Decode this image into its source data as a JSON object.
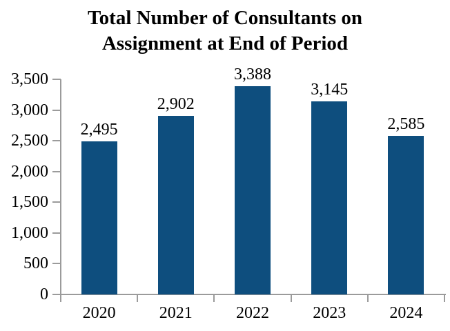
{
  "chart_data": {
    "type": "bar",
    "title": "Total Number of Consultants on Assignment at End of Period",
    "title_lines": [
      "Total Number of Consultants on",
      "Assignment at End of Period"
    ],
    "categories": [
      "2020",
      "2021",
      "2022",
      "2023",
      "2024"
    ],
    "values": [
      2495,
      2902,
      3388,
      3145,
      2585
    ],
    "value_labels": [
      "2,495",
      "2,902",
      "3,388",
      "3,145",
      "2,585"
    ],
    "xlabel": "",
    "ylabel": "",
    "ylim": [
      0,
      3500
    ],
    "y_ticks": [
      0,
      500,
      1000,
      1500,
      2000,
      2500,
      3000,
      3500
    ],
    "y_tick_labels": [
      "0",
      "500",
      "1,000",
      "1,500",
      "2,000",
      "2,500",
      "3,000",
      "3,500"
    ],
    "grid": false,
    "legend": false,
    "bar_color": "#0E4E7E",
    "axis_color": "#9B9B9B",
    "text_color": "#000000",
    "background_color": "#FFFFFF"
  }
}
